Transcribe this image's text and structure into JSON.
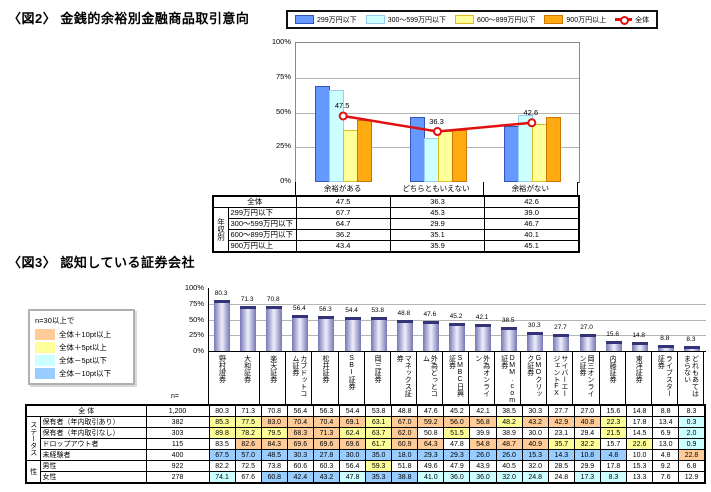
{
  "fig2": {
    "title": "〈図2〉 金銭的余裕別金融商品取引意向",
    "legend_items": [
      {
        "type": "bar",
        "label": "299万円以下",
        "fill": "#6699ff",
        "border": "#3355bb"
      },
      {
        "type": "bar",
        "label": "300～599万円以下",
        "fill": "#ccffff",
        "border": "#99ccee"
      },
      {
        "type": "bar",
        "label": "600～899万円以下",
        "fill": "#ffff99",
        "border": "#ddbb22"
      },
      {
        "type": "bar",
        "label": "900万円以上",
        "fill": "#ffaa11",
        "border": "#cc7700"
      },
      {
        "type": "line",
        "label": "全体",
        "color": "#e01010"
      }
    ],
    "table": {
      "overall_label": "全体",
      "group_label": "年収別",
      "row_labels": [
        "299万円以下",
        "300～599万円以下",
        "600～899万円以下",
        "900万円以上"
      ]
    }
  },
  "fig3": {
    "title": "〈図3〉 認知している証券会社",
    "legend": {
      "title": "n=30以上で",
      "items": [
        {
          "label": "全体＋10pt以上",
          "color": "#ffcc99"
        },
        {
          "label": "全体＋5pt以上",
          "color": "#ffff99"
        },
        {
          "label": "全体－5pt以下",
          "color": "#ccffff"
        },
        {
          "label": "全体－10pt以下",
          "color": "#99ccff"
        }
      ]
    },
    "bar_colors": {
      "edge": "#7777b4",
      "center": "#eeeefc",
      "cap": "#333377"
    },
    "highlight_rule": {
      "plus10": 10,
      "plus5": 5,
      "minus5": -5,
      "minus10": -10
    },
    "table": {
      "n_header": "n=",
      "overall": {
        "label": "全 体",
        "n": "1,200"
      },
      "groups": [
        {
          "label": "ステータス",
          "rows": [
            {
              "label": "保有者（年内取引あり）",
              "n": "382",
              "values": [
                85.3,
                77.5,
                83.0,
                70.4,
                70.4,
                69.1,
                63.1,
                67.0,
                59.2,
                56.0,
                56.8,
                48.2,
                43.2,
                42.9,
                40.8,
                22.3,
                17.8,
                13.4,
                0.3
              ]
            },
            {
              "label": "保有者（年内取引なし）",
              "n": "303",
              "values": [
                89.8,
                78.2,
                79.5,
                68.3,
                71.3,
                62.4,
                63.7,
                62.0,
                50.8,
                51.5,
                39.9,
                38.9,
                30.0,
                23.1,
                29.4,
                21.5,
                14.5,
                6.9,
                2.0
              ]
            },
            {
              "label": "ドロップアウト者",
              "n": "115",
              "values": [
                83.5,
                82.6,
                84.3,
                69.6,
                69.6,
                69.6,
                61.7,
                60.9,
                64.3,
                47.8,
                54.8,
                48.7,
                40.9,
                35.7,
                32.2,
                15.7,
                22.6,
                13.0,
                0.9
              ]
            },
            {
              "label": "未経験者",
              "n": "400",
              "values": [
                67.5,
                57.0,
                48.5,
                30.3,
                27.8,
                30.0,
                35.0,
                18.0,
                29.3,
                29.3,
                26.0,
                26.0,
                15.3,
                14.3,
                10.8,
                4.8,
                10.0,
                4.8,
                22.8
              ]
            }
          ]
        },
        {
          "label": "性",
          "rows": [
            {
              "label": "男性",
              "n": "922",
              "values": [
                82.2,
                72.5,
                73.8,
                60.6,
                60.3,
                56.4,
                59.3,
                51.8,
                49.6,
                47.9,
                43.9,
                40.5,
                32.0,
                28.5,
                29.9,
                17.8,
                15.3,
                9.2,
                6.8
              ]
            },
            {
              "label": "女性",
              "n": "278",
              "values": [
                74.1,
                67.6,
                60.8,
                42.4,
                43.2,
                47.8,
                35.3,
                38.8,
                41.0,
                36.0,
                36.0,
                32.0,
                24.8,
                24.8,
                17.3,
                8.3,
                13.3,
                7.6,
                12.9
              ]
            }
          ]
        }
      ]
    }
  },
  "chart_data": [
    {
      "type": "bar",
      "title": "金銭的余裕別金融商品取引意向",
      "categories": [
        "余裕がある",
        "どちらともいえない",
        "余裕がない"
      ],
      "series": [
        {
          "name": "299万円以下",
          "values": [
            67.7,
            45.3,
            39.0
          ]
        },
        {
          "name": "300～599万円以下",
          "values": [
            64.7,
            29.9,
            46.7
          ]
        },
        {
          "name": "600～899万円以下",
          "values": [
            36.2,
            35.1,
            40.1
          ]
        },
        {
          "name": "900万円以上",
          "values": [
            43.4,
            35.9,
            45.1
          ]
        }
      ],
      "line_series": {
        "name": "全体",
        "values": [
          47.5,
          36.3,
          42.6
        ]
      },
      "ylim": [
        0,
        100
      ],
      "yticks": [
        0,
        25,
        50,
        75,
        100
      ],
      "ytick_format": "percent",
      "grid": "horizontal",
      "legend_position": "top"
    },
    {
      "type": "bar",
      "title": "認知している証券会社",
      "categories": [
        "野村證券",
        "大和証券",
        "楽天証券",
        "カブドットコム証券",
        "松井証券",
        "SBI証券",
        "岡三証券",
        "マネックス証券",
        "外為どっとコム",
        "SMBC日興証券",
        "外為オンライン",
        "DMM.com証券",
        "GMOクリック証券",
        "サイバーエージェントFX",
        "岡三オンライン証券",
        "内藤証券",
        "東洋証券",
        "ライブスター証券",
        "どれもあてはまらない"
      ],
      "values": [
        80.3,
        71.3,
        70.8,
        56.4,
        56.3,
        54.4,
        53.8,
        48.8,
        47.6,
        45.2,
        42.1,
        38.5,
        30.3,
        27.7,
        27.0,
        15.6,
        14.8,
        8.8,
        8.3
      ],
      "ylim": [
        0,
        100
      ],
      "yticks": [
        0,
        25,
        50,
        75,
        100
      ],
      "ytick_format": "percent",
      "grid": "horizontal",
      "legend_position": "left"
    }
  ]
}
